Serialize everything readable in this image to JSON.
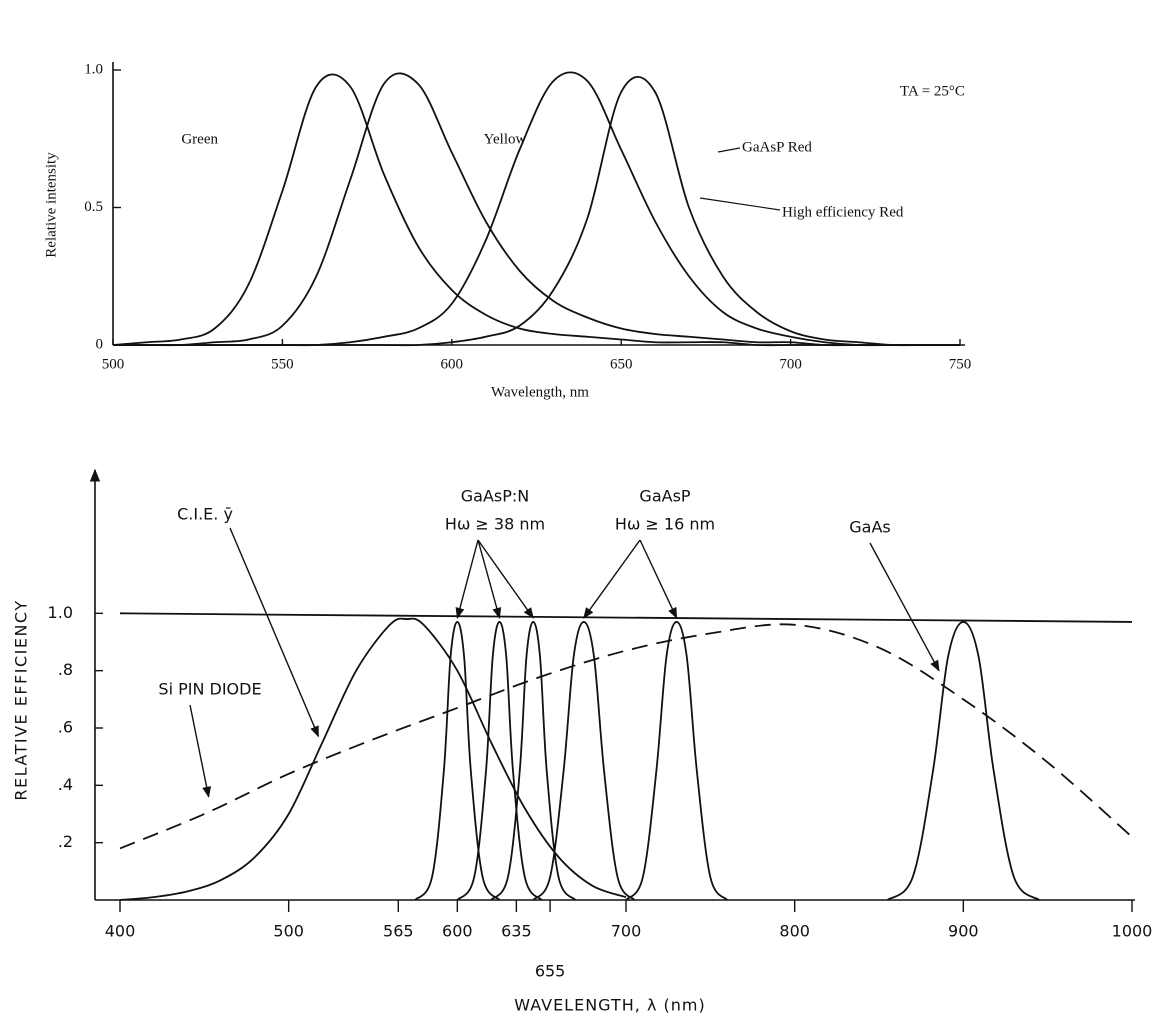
{
  "chart_data": [
    {
      "type": "line",
      "x_label": "Wavelength, nm",
      "y_label": "Relative intensity",
      "annotation": "TA = 25°C",
      "x": [
        500,
        510,
        520,
        530,
        540,
        550,
        560,
        570,
        580,
        590,
        600,
        610,
        620,
        630,
        640,
        650,
        660,
        670,
        680,
        690,
        700,
        710,
        720,
        730,
        740,
        750
      ],
      "xlim": [
        500,
        750
      ],
      "xticks": [
        500,
        550,
        600,
        650,
        700,
        750
      ],
      "ylim": [
        0,
        1
      ],
      "yticks": [
        0,
        0.5,
        {
          "value": 1,
          "label": "1.0"
        }
      ],
      "series": [
        {
          "name": "Green",
          "color": "#111",
          "values": [
            0,
            0.01,
            0.02,
            0.06,
            0.22,
            0.56,
            0.94,
            0.94,
            0.62,
            0.36,
            0.2,
            0.11,
            0.06,
            0.04,
            0.03,
            0.02,
            0.01,
            0.01,
            0.01,
            0,
            0,
            0,
            0,
            0,
            0,
            0
          ]
        },
        {
          "name": "Yellow",
          "color": "#111",
          "values": [
            0,
            0,
            0,
            0.01,
            0.02,
            0.07,
            0.25,
            0.6,
            0.95,
            0.95,
            0.7,
            0.45,
            0.27,
            0.16,
            0.1,
            0.06,
            0.04,
            0.03,
            0.02,
            0.01,
            0.01,
            0,
            0,
            0,
            0,
            0
          ]
        },
        {
          "name": "GaAsP Red",
          "color": "#111",
          "values": [
            0,
            0,
            0,
            0,
            0,
            0,
            0,
            0,
            0,
            0,
            0.01,
            0.03,
            0.07,
            0.2,
            0.46,
            0.92,
            0.92,
            0.5,
            0.25,
            0.12,
            0.05,
            0.02,
            0.01,
            0,
            0,
            0
          ]
        },
        {
          "name": "High efficiency Red",
          "color": "#111",
          "values": [
            0,
            0,
            0,
            0,
            0,
            0,
            0,
            0.01,
            0.03,
            0.06,
            0.15,
            0.38,
            0.71,
            0.96,
            0.96,
            0.71,
            0.45,
            0.25,
            0.12,
            0.06,
            0.03,
            0.01,
            0,
            0,
            0,
            0
          ]
        }
      ]
    },
    {
      "type": "line",
      "x_label": "WAVELENGTH, λ (nm)",
      "y_label": "RELATIVE EFFICIENCY",
      "annotations": [
        "GaAsP:N",
        "Hω ≥ 38 nm",
        "GaAsP",
        "Hω ≥ 16 nm",
        "GaAs"
      ],
      "xlim": [
        400,
        1000
      ],
      "xticks": [
        400,
        500,
        565,
        600,
        635,
        655,
        700,
        800,
        900,
        1000
      ],
      "ylim": [
        0,
        1.5
      ],
      "yticks": [
        {
          "value": 0.2,
          "label": ".2"
        },
        {
          "value": 0.4,
          "label": ".4"
        },
        {
          "value": 0.6,
          "label": ".6"
        },
        {
          "value": 0.8,
          "label": ".8"
        },
        {
          "value": 1,
          "label": "1.0"
        }
      ],
      "series": [
        {
          "color": "#111",
          "x": [
            400,
            1000
          ],
          "values": [
            1.0,
            0.97
          ]
        },
        {
          "name": "C.I.E. ȳ",
          "color": "#111",
          "x": [
            400,
            420,
            440,
            460,
            480,
            500,
            520,
            540,
            560,
            570,
            580,
            600,
            620,
            640,
            660,
            680,
            700
          ],
          "values": [
            0,
            0.01,
            0.03,
            0.07,
            0.15,
            0.3,
            0.55,
            0.8,
            0.96,
            0.98,
            0.96,
            0.8,
            0.55,
            0.32,
            0.15,
            0.05,
            0.01
          ]
        },
        {
          "name": "Si PIN DIODE",
          "color": "#111",
          "line_style": "dashed",
          "x": [
            400,
            450,
            500,
            550,
            600,
            650,
            700,
            750,
            800,
            850,
            900,
            950,
            1000
          ],
          "values": [
            0.18,
            0.3,
            0.44,
            0.56,
            0.67,
            0.78,
            0.87,
            0.93,
            0.96,
            0.88,
            0.7,
            0.48,
            0.22
          ]
        },
        {
          "color": "#111",
          "x": [
            575,
            585,
            592,
            596,
            600,
            604,
            608,
            615,
            625
          ],
          "values": [
            0,
            0.08,
            0.45,
            0.85,
            0.97,
            0.85,
            0.45,
            0.08,
            0
          ]
        },
        {
          "color": "#111",
          "x": [
            600,
            610,
            617,
            621,
            625,
            629,
            633,
            640,
            650
          ],
          "values": [
            0,
            0.08,
            0.45,
            0.85,
            0.97,
            0.85,
            0.45,
            0.08,
            0
          ]
        },
        {
          "color": "#111",
          "x": [
            620,
            630,
            637,
            641,
            645,
            649,
            653,
            660,
            670
          ],
          "values": [
            0,
            0.08,
            0.45,
            0.85,
            0.97,
            0.85,
            0.45,
            0.08,
            0
          ]
        },
        {
          "color": "#111",
          "x": [
            645,
            655,
            663,
            669,
            675,
            681,
            687,
            695,
            705
          ],
          "values": [
            0,
            0.08,
            0.45,
            0.85,
            0.97,
            0.85,
            0.45,
            0.08,
            0
          ]
        },
        {
          "color": "#111",
          "x": [
            700,
            710,
            718,
            724,
            730,
            736,
            742,
            750,
            760
          ],
          "values": [
            0,
            0.08,
            0.45,
            0.85,
            0.97,
            0.85,
            0.45,
            0.08,
            0
          ]
        },
        {
          "color": "#111",
          "x": [
            855,
            870,
            882,
            891,
            900,
            909,
            918,
            930,
            945
          ],
          "values": [
            0,
            0.08,
            0.45,
            0.85,
            0.97,
            0.85,
            0.45,
            0.08,
            0
          ]
        }
      ]
    }
  ]
}
